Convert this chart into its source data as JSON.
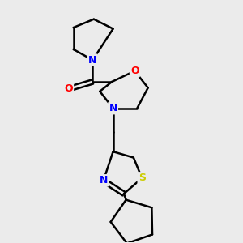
{
  "bg_color": "#ebebeb",
  "bond_color": "#000000",
  "atom_colors": {
    "N": "#0000ff",
    "O": "#ff0000",
    "S": "#cccc00"
  },
  "bond_width": 1.8,
  "figsize": [
    3.0,
    3.0
  ],
  "dpi": 100
}
